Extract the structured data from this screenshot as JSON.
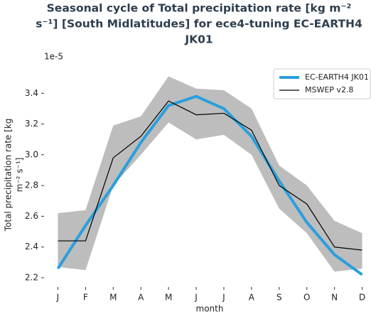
{
  "chart_data": {
    "type": "line",
    "title": [
      "Seasonal cycle of Total precipitation rate [kg m⁻²",
      "s⁻¹] [South Midlatitudes] for ece4-tuning EC-EARTH4",
      "JK01"
    ],
    "ylabel": [
      "Total precipitation rate [kg",
      "m⁻² s⁻¹]"
    ],
    "xlabel": "month",
    "offset_label": "1e-5",
    "categories": [
      "J",
      "F",
      "M",
      "A",
      "M",
      "J",
      "J",
      "A",
      "S",
      "O",
      "N",
      "D"
    ],
    "series": [
      {
        "name": "EC-EARTH4 JK01",
        "color": "#2a9fdc",
        "width": 4,
        "values": [
          2.26,
          2.54,
          2.8,
          3.08,
          3.32,
          3.38,
          3.3,
          3.12,
          2.83,
          2.56,
          2.35,
          2.22
        ]
      },
      {
        "name": "MSWEP v2.8",
        "color": "#000000",
        "width": 1.2,
        "values": [
          2.44,
          2.44,
          2.98,
          3.12,
          3.35,
          3.26,
          3.27,
          3.16,
          2.8,
          2.68,
          2.4,
          2.38
        ]
      }
    ],
    "band": {
      "color": "#bdbdbd",
      "upper": [
        2.62,
        2.64,
        3.19,
        3.25,
        3.51,
        3.43,
        3.42,
        3.3,
        2.93,
        2.8,
        2.57,
        2.49
      ],
      "lower": [
        2.27,
        2.25,
        2.8,
        3.0,
        3.21,
        3.1,
        3.13,
        3.0,
        2.65,
        2.49,
        2.24,
        2.26
      ]
    },
    "ylim": [
      2.14,
      3.6
    ],
    "yticks": [
      {
        "value": 2.2,
        "label": "2.2"
      },
      {
        "value": 2.4,
        "label": "2.4"
      },
      {
        "value": 2.6,
        "label": "2.6"
      },
      {
        "value": 2.8,
        "label": "2.8"
      },
      {
        "value": 3.0,
        "label": "3.0"
      },
      {
        "value": 3.2,
        "label": "3.2"
      },
      {
        "value": 3.4,
        "label": "3.4"
      }
    ],
    "legend": "upper right"
  }
}
